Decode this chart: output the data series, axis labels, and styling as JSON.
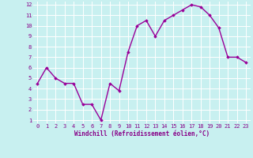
{
  "x": [
    0,
    1,
    2,
    3,
    4,
    5,
    6,
    7,
    8,
    9,
    10,
    11,
    12,
    13,
    14,
    15,
    16,
    17,
    18,
    19,
    20,
    21,
    22,
    23
  ],
  "y": [
    4.5,
    6.0,
    5.0,
    4.5,
    4.5,
    2.5,
    2.5,
    1.0,
    4.5,
    3.8,
    7.5,
    10.0,
    10.5,
    9.0,
    10.5,
    11.0,
    11.5,
    12.0,
    11.8,
    11.0,
    9.8,
    7.0,
    7.0,
    6.5
  ],
  "line_color": "#990099",
  "marker": "D",
  "marker_size": 1.8,
  "bg_color": "#c8f0f0",
  "grid_color": "#ffffff",
  "xlabel": "Windchill (Refroidissement éolien,°C)",
  "tick_color": "#880088",
  "label_color": "#880088",
  "ylim": [
    1,
    12
  ],
  "xlim": [
    -0.5,
    23.5
  ],
  "yticks": [
    1,
    2,
    3,
    4,
    5,
    6,
    7,
    8,
    9,
    10,
    11,
    12
  ],
  "xticks": [
    0,
    1,
    2,
    3,
    4,
    5,
    6,
    7,
    8,
    9,
    10,
    11,
    12,
    13,
    14,
    15,
    16,
    17,
    18,
    19,
    20,
    21,
    22,
    23
  ],
  "linewidth": 1.0,
  "tick_fontsize": 5.0,
  "xlabel_fontsize": 5.5
}
